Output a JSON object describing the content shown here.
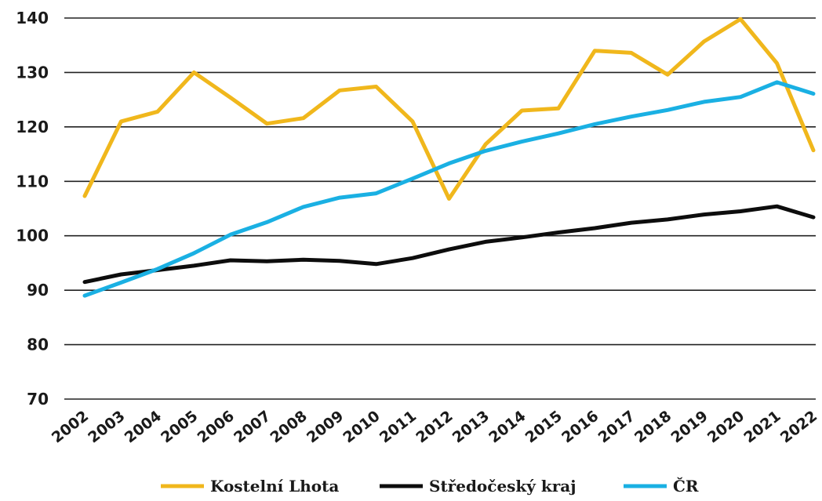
{
  "chart_data": {
    "type": "line",
    "categories": [
      "2002",
      "2003",
      "2004",
      "2005",
      "2006",
      "2007",
      "2008",
      "2009",
      "2010",
      "2011",
      "2012",
      "2013",
      "2014",
      "2015",
      "2016",
      "2017",
      "2018",
      "2019",
      "2020",
      "2021",
      "2022"
    ],
    "ylim": [
      70,
      140
    ],
    "yticks": [
      70,
      80,
      90,
      100,
      110,
      120,
      130,
      140
    ],
    "grid": true,
    "legend_position": "bottom",
    "series": [
      {
        "name": "Kostelní Lhota",
        "color": "#f0b71c",
        "values": [
          107.3,
          121.0,
          122.8,
          130.0,
          125.4,
          120.6,
          121.6,
          126.7,
          127.4,
          121.0,
          106.8,
          116.8,
          123.0,
          123.4,
          134.0,
          133.6,
          129.6,
          135.7,
          139.8,
          131.7,
          115.7
        ]
      },
      {
        "name": "Středočeský kraj",
        "color": "#0d0d0d",
        "values": [
          91.5,
          92.9,
          93.7,
          94.5,
          95.5,
          95.3,
          95.6,
          95.4,
          94.8,
          95.9,
          97.5,
          98.9,
          99.7,
          100.6,
          101.4,
          102.4,
          103.0,
          103.9,
          104.5,
          105.4,
          103.4
        ]
      },
      {
        "name": "ČR",
        "color": "#1ab0e3",
        "values": [
          89.0,
          91.4,
          93.9,
          96.8,
          100.2,
          102.5,
          105.3,
          107.0,
          107.8,
          110.5,
          113.3,
          115.6,
          117.3,
          118.8,
          120.5,
          121.9,
          123.1,
          124.6,
          125.5,
          128.2,
          126.1
        ]
      }
    ]
  }
}
